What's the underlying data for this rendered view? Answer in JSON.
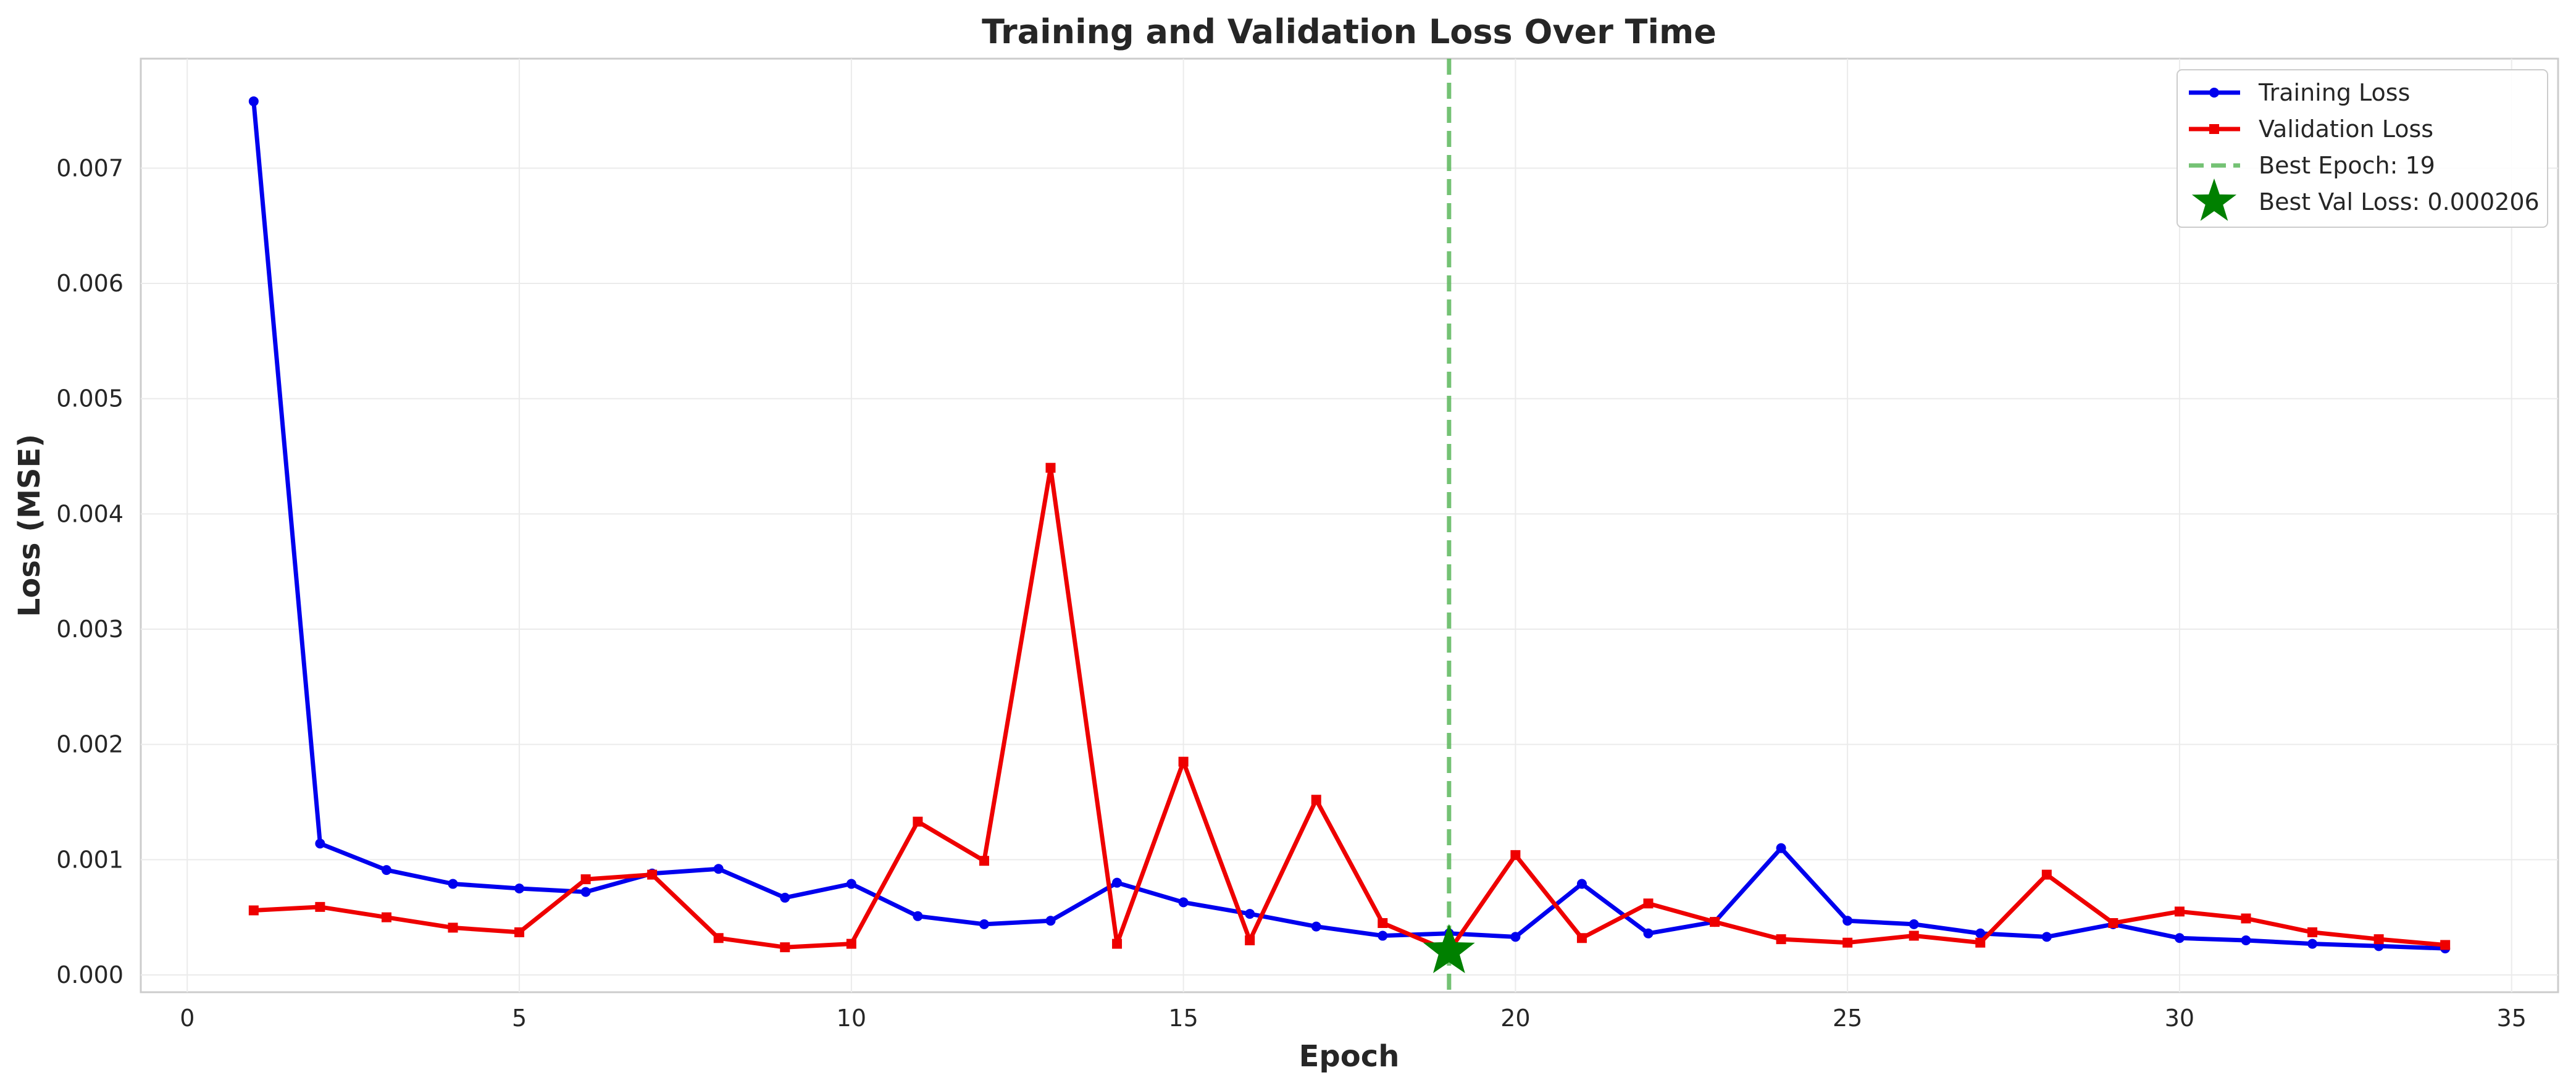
{
  "chart_data": {
    "type": "line",
    "title": "Training and Validation Loss Over Time",
    "xlabel": "Epoch",
    "ylabel": "Loss (MSE)",
    "xlim": [
      -0.7,
      35.7
    ],
    "ylim": [
      -0.00015,
      0.00795
    ],
    "xticks": [
      0,
      5,
      10,
      15,
      20,
      25,
      30,
      35
    ],
    "xtick_labels": [
      "0",
      "5",
      "10",
      "15",
      "20",
      "25",
      "30",
      "35"
    ],
    "yticks": [
      0.0,
      0.001,
      0.002,
      0.003,
      0.004,
      0.005,
      0.006,
      0.007
    ],
    "ytick_labels": [
      "0.000",
      "0.001",
      "0.002",
      "0.003",
      "0.004",
      "0.005",
      "0.006",
      "0.007"
    ],
    "grid": true,
    "legend_position": "top-right",
    "x": [
      1,
      2,
      3,
      4,
      5,
      6,
      7,
      8,
      9,
      10,
      11,
      12,
      13,
      14,
      15,
      16,
      17,
      18,
      19,
      20,
      21,
      22,
      23,
      24,
      25,
      26,
      27,
      28,
      29,
      30,
      31,
      32,
      33,
      34
    ],
    "series": [
      {
        "name": "Training Loss",
        "color": "#0000ee",
        "marker": "circle",
        "values": [
          0.00758,
          0.00114,
          0.00091,
          0.00079,
          0.00075,
          0.00072,
          0.00088,
          0.00092,
          0.00067,
          0.00079,
          0.00051,
          0.00044,
          0.00047,
          0.0008,
          0.00063,
          0.00053,
          0.00042,
          0.00034,
          0.00036,
          0.00033,
          0.00079,
          0.00036,
          0.00046,
          0.0011,
          0.00047,
          0.00044,
          0.00036,
          0.00033,
          0.00044,
          0.00032,
          0.0003,
          0.00027,
          0.00025,
          0.00023
        ]
      },
      {
        "name": "Validation Loss",
        "color": "#ee0000",
        "marker": "square",
        "values": [
          0.00056,
          0.00059,
          0.0005,
          0.00041,
          0.00037,
          0.00083,
          0.00087,
          0.00032,
          0.00024,
          0.00027,
          0.00133,
          0.00099,
          0.0044,
          0.00027,
          0.00185,
          0.0003,
          0.00152,
          0.00045,
          0.000206,
          0.00104,
          0.00032,
          0.00062,
          0.00046,
          0.00031,
          0.00028,
          0.00034,
          0.00028,
          0.00087,
          0.00045,
          0.00055,
          0.00049,
          0.00037,
          0.00031,
          0.00026
        ]
      }
    ],
    "best_epoch": {
      "label": "Best Epoch: 19",
      "x": 19,
      "color": "#5cb85c"
    },
    "best_val_point": {
      "label": "Best Val Loss: 0.000206",
      "x": 19,
      "y": 0.000206,
      "color": "#008000",
      "marker": "star"
    }
  }
}
